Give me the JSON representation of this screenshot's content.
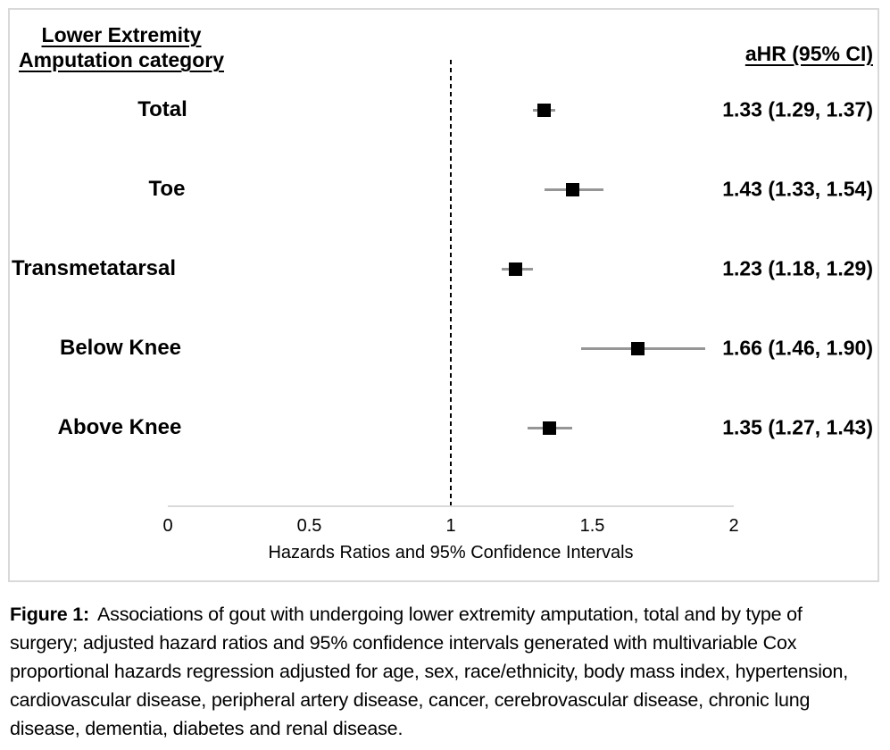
{
  "chart_data": {
    "type": "forest",
    "header_left": [
      "Lower Extremity",
      "Amputation category"
    ],
    "header_right": "aHR (95% CI)",
    "rows": [
      {
        "category": "Total",
        "hr": 1.33,
        "ci_low": 1.29,
        "ci_high": 1.37,
        "value_label": "1.33 (1.29, 1.37)"
      },
      {
        "category": "Toe",
        "hr": 1.43,
        "ci_low": 1.33,
        "ci_high": 1.54,
        "value_label": "1.43 (1.33, 1.54)"
      },
      {
        "category": "Transmetatarsal",
        "hr": 1.23,
        "ci_low": 1.18,
        "ci_high": 1.29,
        "value_label": "1.23 (1.18, 1.29)"
      },
      {
        "category": "Below Knee",
        "hr": 1.66,
        "ci_low": 1.46,
        "ci_high": 1.9,
        "value_label": "1.66 (1.46, 1.90)"
      },
      {
        "category": "Above Knee",
        "hr": 1.35,
        "ci_low": 1.27,
        "ci_high": 1.43,
        "value_label": "1.35 (1.27, 1.43)"
      }
    ],
    "x_axis": {
      "range": [
        0,
        2
      ],
      "ticks": [
        {
          "value": 0,
          "label": "0"
        },
        {
          "value": 0.5,
          "label": "0.5"
        },
        {
          "value": 1,
          "label": "1"
        },
        {
          "value": 1.5,
          "label": "1.5"
        },
        {
          "value": 2,
          "label": "2"
        }
      ],
      "title": "Hazards Ratios and 95% Confidence Intervals",
      "reference_line": 1
    },
    "legend": "none",
    "grid": "off",
    "colors": {
      "marker": "#000000",
      "ci_bar": "#969696",
      "axis_line": "#d9d9d9",
      "reference_line": "#000000",
      "frame_border": "#d9d9d9",
      "text": "#000000"
    }
  },
  "caption": {
    "label": "Figure 1:",
    "text": "Associations of gout with undergoing lower extremity amputation, total and by type of surgery; adjusted hazard ratios and 95% confidence intervals generated with multivariable Cox proportional hazards regression adjusted for age, sex, race/ethnicity, body mass index, hypertension, cardiovascular disease, peripheral artery disease, cancer, cerebrovascular disease, chronic lung disease, dementia, diabetes and renal disease."
  }
}
